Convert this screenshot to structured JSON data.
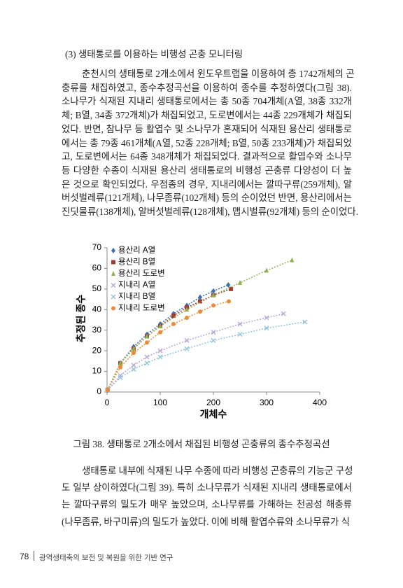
{
  "heading": "(3) 생태통로를 이용하는 비행성 곤충 모니터링",
  "paragraph_1": {
    "lines": [
      "춘천시의 생태통로 2개소에서 윈도우트랩을 이용하여 총 1742개체의 곤",
      "충류를 채집하였고, 종수추정곡선을 이용하여 종수를 추정하였다(그림 38).",
      "소나무가 식재된 지내리 생태통로에서는 총 50종 704개체(A열, 38종 332개",
      "체; B열, 34종 372개체)가 채집되었고, 도로변에서는 44종 229개체가 채집되",
      "었다. 반면, 참나무 등 활엽수 및 소나무가 혼재되어 식재된 용산리 생태통로",
      "에서는 총 79종 461개체(A열, 52종 228개체; B열, 50종 233개체)가 채집되었",
      "고, 도로변에서는 64종 348개체가 채집되었다. 결과적으로 활엽수와 소나무",
      "등 다양한 수종이 식재된 용산리 생태통로의 비행성 곤충류 다양성이 더 높",
      "은 것으로 확인되었다. 우점종의 경우, 지내리에서는 깔따구류(259개체), 알",
      "버섯벌레류(121개체), 나무좀류(102개체) 등의 순이었던 반면, 용산리에서는",
      "진딧물류(138개체), 알버섯벌레류(128개체), 맵시벌류(92개체) 등의 순이었다."
    ]
  },
  "chart_data": {
    "type": "scatter",
    "x_label": "개체수",
    "y_label": "추정된 종수",
    "xlim": [
      0,
      400
    ],
    "xticks": [
      0,
      100,
      200,
      300,
      400
    ],
    "ylim": [
      0,
      70
    ],
    "yticks": [
      0,
      10,
      20,
      30,
      40,
      50,
      60,
      70
    ],
    "legend": "top-left",
    "series": [
      {
        "name": "용산리 A열",
        "color": "#3b6fb6",
        "marker": "diamond",
        "x": [
          1,
          25,
          50,
          75,
          100,
          125,
          150,
          175,
          200,
          228
        ],
        "values": [
          1,
          14,
          22,
          28,
          33,
          38,
          42,
          46,
          49,
          52
        ]
      },
      {
        "name": "용산리 B열",
        "color": "#a83a36",
        "marker": "square",
        "x": [
          1,
          25,
          50,
          75,
          100,
          125,
          150,
          175,
          200,
          233
        ],
        "values": [
          1,
          14,
          21,
          27,
          32,
          37,
          41,
          44,
          47,
          50
        ]
      },
      {
        "name": "용산리 도로변",
        "color": "#8fb24a",
        "marker": "triangle",
        "x": [
          1,
          25,
          50,
          75,
          100,
          150,
          200,
          250,
          300,
          348
        ],
        "values": [
          1,
          14,
          21,
          27,
          32,
          40,
          47,
          53,
          59,
          64
        ]
      },
      {
        "name": "지내리 A열",
        "color": "#b9a7d6",
        "marker": "x",
        "x": [
          1,
          25,
          50,
          75,
          100,
          150,
          200,
          250,
          300,
          332
        ],
        "values": [
          1,
          8,
          13,
          17,
          20,
          25,
          29,
          33,
          36,
          38
        ]
      },
      {
        "name": "지내리 B열",
        "color": "#8fc3dc",
        "marker": "x",
        "x": [
          1,
          25,
          50,
          75,
          100,
          150,
          200,
          250,
          300,
          372
        ],
        "values": [
          1,
          7,
          11,
          14,
          17,
          21,
          25,
          28,
          31,
          34
        ]
      },
      {
        "name": "지내리 도로변",
        "color": "#ee8a35",
        "marker": "circle",
        "x": [
          1,
          25,
          50,
          75,
          100,
          125,
          150,
          175,
          200,
          229
        ],
        "values": [
          1,
          12,
          19,
          24,
          29,
          33,
          36,
          39,
          42,
          44
        ]
      }
    ]
  },
  "figure_caption": "그림 38. 생태통로 2개소에서 채집된 비행성 곤충류의 종수추정곡선",
  "paragraph_2": {
    "lines": [
      "생태통로 내부에 식재된 나무 수종에 따라 비행성 곤충류의 기능군 구성",
      "도 일부 상이하였다(그림 39). 특히 소나무류가 식재된 지내리 생태통로에서",
      "는 깔따구류의 밀도가 매우 높았으며, 소나무류를 가해하는 천공성 해충류",
      "(나무좀류, 바구미류)의 밀도가 높았다. 이에 비해 활엽수류와 소나무류가 식"
    ]
  },
  "footer": {
    "page": "78",
    "title": "광역생태축의 보전 및 복원을 위한 기반 연구"
  }
}
